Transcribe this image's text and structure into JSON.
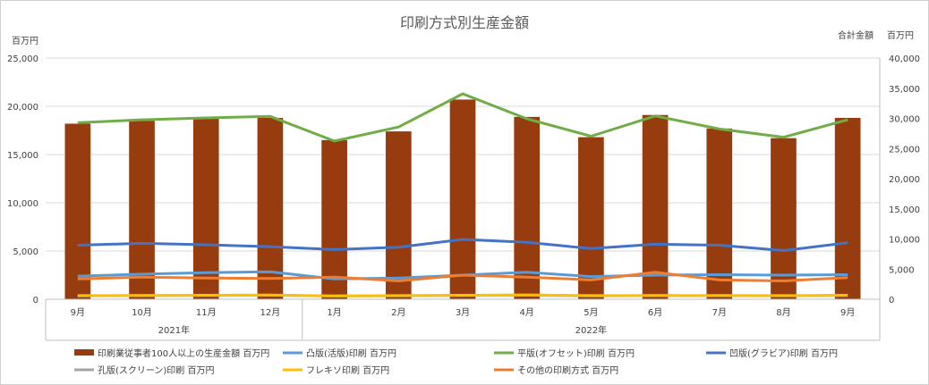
{
  "chart_data": {
    "type": "bar",
    "title": "印刷方式別生産金額",
    "left_axis_unit": "百万円",
    "right_axis_label": "合計金額",
    "right_axis_unit": "百万円",
    "categories": [
      "9月",
      "10月",
      "11月",
      "12月",
      "1月",
      "2月",
      "3月",
      "4月",
      "5月",
      "6月",
      "7月",
      "8月",
      "9月"
    ],
    "year_groups": [
      {
        "label": "2021年",
        "start": 0,
        "end": 3
      },
      {
        "label": "2022年",
        "start": 4,
        "end": 12
      }
    ],
    "ylim_left": [
      0,
      25000
    ],
    "yticks_left": [
      "0",
      "5,000",
      "10,000",
      "15,000",
      "20,000",
      "25,000"
    ],
    "ylim_right": [
      0,
      40000
    ],
    "yticks_right": [
      "0",
      "5,000",
      "10,000",
      "15,000",
      "20,000",
      "25,000",
      "30,000",
      "35,000",
      "40,000"
    ],
    "grid": true,
    "legend_position": "bottom",
    "series": [
      {
        "name": "印刷業従事者100人以上の生産金額 百万円",
        "kind": "bar",
        "axis": "left",
        "color": "#963C0E",
        "values": [
          18200,
          18500,
          18700,
          18800,
          16500,
          17400,
          20700,
          18900,
          16800,
          19100,
          17700,
          16700,
          18800
        ]
      },
      {
        "name": "凸版(活版)印刷 百万円",
        "kind": "line",
        "axis": "left",
        "color": "#5B9BD5",
        "values": [
          2400,
          2600,
          2750,
          2850,
          2100,
          2200,
          2500,
          2800,
          2350,
          2500,
          2550,
          2500,
          2550
        ]
      },
      {
        "name": "平版(オフセット)印刷 百万円",
        "kind": "line",
        "axis": "left",
        "color": "#70AD47",
        "values": [
          18300,
          18600,
          18800,
          18950,
          16400,
          17850,
          21300,
          18700,
          16900,
          19000,
          17650,
          16800,
          18600
        ]
      },
      {
        "name": "凹版(グラビア)印刷 百万円",
        "kind": "line",
        "axis": "left",
        "color": "#4472C4",
        "values": [
          5600,
          5800,
          5650,
          5450,
          5150,
          5400,
          6200,
          5900,
          5250,
          5700,
          5600,
          5050,
          5850
        ]
      },
      {
        "name": "孔版(スクリーン)印刷 百万円",
        "kind": "line",
        "axis": "left",
        "color": "#A5A5A5",
        "values": [
          350,
          380,
          400,
          420,
          330,
          360,
          400,
          420,
          340,
          380,
          370,
          360,
          390
        ]
      },
      {
        "name": "フレキソ印刷 百万円",
        "kind": "line",
        "axis": "left",
        "color": "#FFC000",
        "values": [
          380,
          400,
          420,
          440,
          350,
          380,
          420,
          450,
          380,
          400,
          390,
          380,
          420
        ]
      },
      {
        "name": "その他の印刷方式 百万円",
        "kind": "line",
        "axis": "left",
        "color": "#ED7D31",
        "values": [
          2100,
          2300,
          2200,
          2150,
          2300,
          1900,
          2500,
          2300,
          2000,
          2800,
          2000,
          1900,
          2250
        ]
      }
    ]
  }
}
